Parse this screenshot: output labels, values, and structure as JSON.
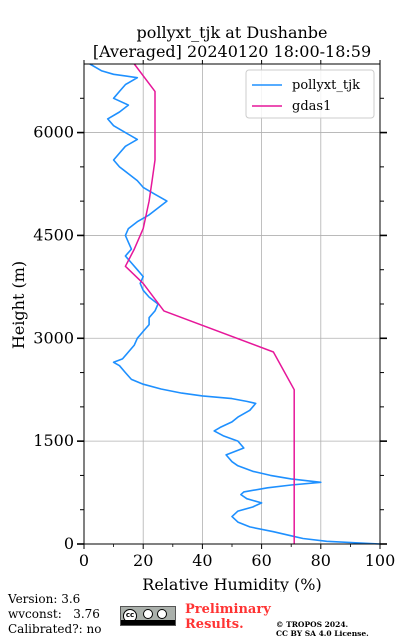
{
  "chart_data": {
    "type": "line",
    "title": "pollyxt_tjk at Dushanbe",
    "subtitle": "[Averaged] 20240120 18:00-18:59",
    "xlabel": "Relative Humidity (%)",
    "ylabel": "Height (m)",
    "xlim": [
      0,
      100
    ],
    "ylim": [
      0,
      7000
    ],
    "xticks": [
      "0",
      "20",
      "40",
      "60",
      "80",
      "100"
    ],
    "yticks": [
      "0",
      "1500",
      "3000",
      "4500",
      "6000"
    ],
    "grid": true,
    "legend_position": "top-right",
    "series": [
      {
        "name": "pollyxt_tjk",
        "color": "#1e90ff",
        "x": [
          100,
          82,
          74,
          70,
          64,
          56,
          52,
          50,
          52,
          57,
          60,
          55,
          53,
          54,
          62,
          70,
          80,
          70,
          63,
          57,
          52,
          50,
          48,
          54,
          52,
          47,
          44,
          46,
          50,
          52,
          56,
          58,
          55,
          50,
          40,
          33,
          26,
          20,
          16,
          14,
          12,
          10,
          13,
          15,
          17,
          18,
          20,
          22,
          22,
          24,
          25,
          22,
          20,
          19,
          20,
          18,
          16,
          14,
          16,
          15,
          14,
          15,
          18,
          22,
          25,
          28,
          24,
          20,
          18,
          15,
          12,
          10,
          12,
          14,
          18,
          14,
          10,
          8,
          12,
          15,
          10,
          12,
          14,
          18,
          10,
          6,
          4,
          2
        ],
        "y": [
          0,
          40,
          80,
          120,
          180,
          250,
          320,
          400,
          480,
          540,
          600,
          660,
          720,
          760,
          820,
          860,
          900,
          950,
          1000,
          1060,
          1140,
          1200,
          1300,
          1400,
          1500,
          1580,
          1650,
          1700,
          1780,
          1850,
          1950,
          2050,
          2080,
          2120,
          2160,
          2200,
          2260,
          2330,
          2400,
          2500,
          2600,
          2650,
          2700,
          2800,
          2900,
          3000,
          3100,
          3200,
          3300,
          3400,
          3500,
          3600,
          3700,
          3800,
          3900,
          4000,
          4100,
          4200,
          4300,
          4400,
          4500,
          4600,
          4700,
          4800,
          4900,
          5000,
          5100,
          5200,
          5300,
          5400,
          5500,
          5600,
          5700,
          5800,
          5900,
          6000,
          6100,
          6200,
          6300,
          6400,
          6500,
          6600,
          6700,
          6800,
          6850,
          6900,
          6950,
          7000
        ]
      },
      {
        "name": "gdas1",
        "color": "#e6179a",
        "x": [
          71,
          71,
          71,
          71,
          71,
          71,
          64,
          27,
          20,
          14,
          17,
          20,
          22,
          23,
          24,
          24,
          24,
          24,
          17
        ],
        "y": [
          0,
          500,
          1000,
          1500,
          2000,
          2250,
          2800,
          3400,
          3800,
          4050,
          4300,
          4600,
          5000,
          5300,
          5600,
          6000,
          6300,
          6600,
          7000
        ]
      }
    ]
  },
  "footer": {
    "version": "Version: 3.6",
    "wvconst": "wvconst:   3.76",
    "calibrated": "Calibrated?: no",
    "preliminary_line1": "Preliminary",
    "preliminary_line2": "Results.",
    "copyright_line1": "© TROPOS 2024.",
    "copyright_line2": "CC BY SA 4.0 License.",
    "badge_text": "cc"
  }
}
